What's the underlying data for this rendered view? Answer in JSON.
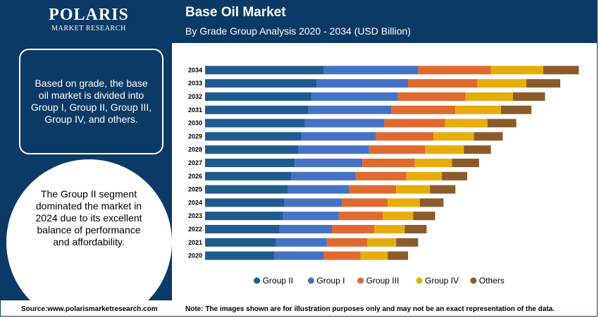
{
  "logo": {
    "name": "POLARIS",
    "tagline": "MARKET RESEARCH"
  },
  "header": {
    "title": "Base Oil Market",
    "subtitle": "By Grade Group Analysis 2020 - 2034 (USD Billion)"
  },
  "info": {
    "segmentation_text": "Based on grade, the base oil market is divided into Group I, Group II, Group III, Group IV, and others.",
    "highlight_text": "The Group II segment dominated the market in 2024 due to its excellent balance of performance and affordability."
  },
  "footer": {
    "source": "Source:www.polarismarketresearch.com",
    "note": "Note: The images shown are for illustration purposes only and may not be an exact representation of the data."
  },
  "chart_data": {
    "type": "bar",
    "orientation": "horizontal",
    "stacked": true,
    "categories": [
      "2034",
      "2033",
      "2032",
      "2031",
      "2030",
      "2029",
      "2028",
      "2027",
      "2026",
      "2025",
      "2024",
      "2023",
      "2022",
      "2021",
      "2020"
    ],
    "series": [
      {
        "name": "Group II",
        "color": "#1f5b8f",
        "values": [
          7.0,
          6.6,
          6.3,
          6.1,
          5.9,
          5.7,
          5.5,
          5.3,
          5.1,
          4.9,
          4.7,
          4.6,
          4.4,
          4.2,
          4.1
        ]
      },
      {
        "name": "Group I",
        "color": "#4472c4",
        "values": [
          5.6,
          5.4,
          5.1,
          4.9,
          4.7,
          4.4,
          4.2,
          4.0,
          3.8,
          3.6,
          3.4,
          3.3,
          3.1,
          3.0,
          2.9
        ]
      },
      {
        "name": "Group III",
        "color": "#df6a2d",
        "values": [
          4.3,
          4.1,
          4.0,
          3.8,
          3.6,
          3.4,
          3.3,
          3.1,
          3.0,
          2.8,
          2.7,
          2.6,
          2.5,
          2.4,
          2.2
        ]
      },
      {
        "name": "Group IV",
        "color": "#e6ad0a",
        "values": [
          3.1,
          2.9,
          2.8,
          2.7,
          2.5,
          2.4,
          2.3,
          2.2,
          2.1,
          2.0,
          1.9,
          1.8,
          1.8,
          1.7,
          1.6
        ]
      },
      {
        "name": "Others",
        "color": "#8b5b2b",
        "values": [
          2.1,
          2.0,
          1.9,
          1.8,
          1.7,
          1.7,
          1.6,
          1.6,
          1.5,
          1.5,
          1.4,
          1.3,
          1.3,
          1.3,
          1.2
        ]
      }
    ],
    "xlim": [
      0,
      22.5
    ],
    "grid": false,
    "legend_position": "bottom"
  }
}
